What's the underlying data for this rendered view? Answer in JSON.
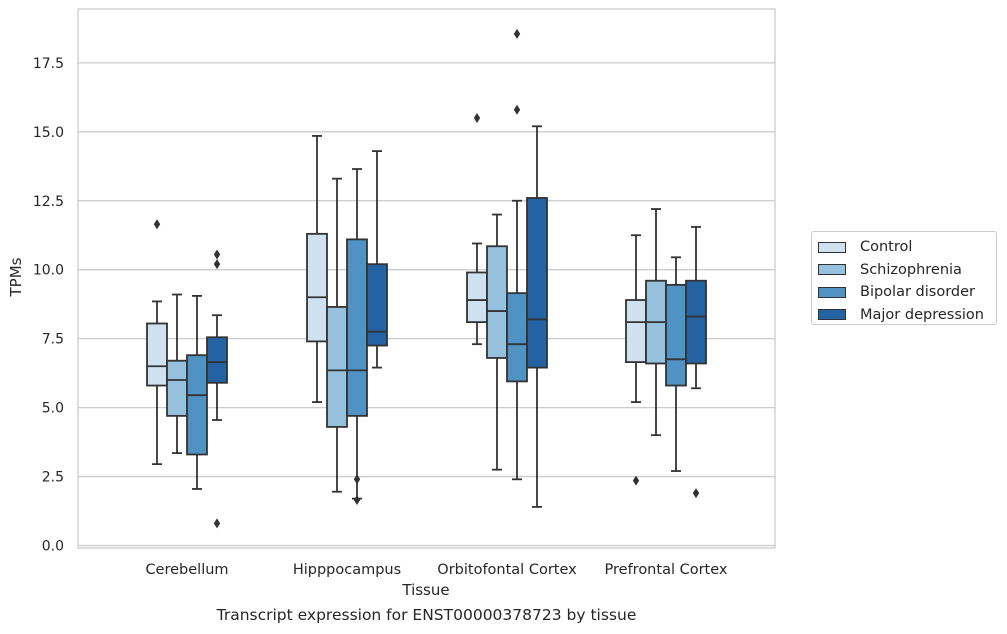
{
  "caption": "Transcript expression for ENST00000378723 by tissue",
  "colors": {
    "Control": "#cfe0f0",
    "Schizophrenia": "#96c1dd",
    "Bipolar disorder": "#4e93c3",
    "Major depression": "#2362a3",
    "grid": "#cccccc",
    "line": "#333333"
  },
  "legend": [
    "Control",
    "Schizophrenia",
    "Bipolar disorder",
    "Major depression"
  ],
  "chart_data": {
    "type": "box",
    "xlabel": "Tissue",
    "ylabel": "TPMs",
    "ylim": [
      0,
      19.4
    ],
    "yticks": [
      "0.0",
      "2.5",
      "5.0",
      "7.5",
      "10.0",
      "12.5",
      "15.0",
      "17.5"
    ],
    "grid": "horizontal",
    "legend_position": "right",
    "categories": [
      "Cerebellum",
      "Hipppocampus",
      "Orbitofontal Cortex",
      "Prefrontal Cortex"
    ],
    "series": [
      {
        "name": "Control",
        "boxes": [
          {
            "whislo": 2.95,
            "q1": 5.8,
            "med": 6.5,
            "q3": 8.05,
            "whishi": 8.85,
            "fliers": [
              11.65
            ]
          },
          {
            "whislo": 5.2,
            "q1": 7.4,
            "med": 9.0,
            "q3": 11.3,
            "whishi": 14.85,
            "fliers": []
          },
          {
            "whislo": 7.3,
            "q1": 8.1,
            "med": 8.9,
            "q3": 9.9,
            "whishi": 10.95,
            "fliers": [
              15.5
            ]
          },
          {
            "whislo": 5.2,
            "q1": 6.65,
            "med": 8.1,
            "q3": 8.9,
            "whishi": 11.25,
            "fliers": [
              2.35
            ]
          }
        ]
      },
      {
        "name": "Schizophrenia",
        "boxes": [
          {
            "whislo": 3.35,
            "q1": 4.7,
            "med": 6.0,
            "q3": 6.7,
            "whishi": 9.1,
            "fliers": []
          },
          {
            "whislo": 1.95,
            "q1": 4.3,
            "med": 6.35,
            "q3": 8.65,
            "whishi": 13.3,
            "fliers": []
          },
          {
            "whislo": 2.75,
            "q1": 6.8,
            "med": 8.5,
            "q3": 10.85,
            "whishi": 12.0,
            "fliers": []
          },
          {
            "whislo": 4.0,
            "q1": 6.6,
            "med": 8.1,
            "q3": 9.6,
            "whishi": 12.2,
            "fliers": []
          }
        ]
      },
      {
        "name": "Bipolar disorder",
        "boxes": [
          {
            "whislo": 2.05,
            "q1": 3.3,
            "med": 5.45,
            "q3": 6.9,
            "whishi": 9.05,
            "fliers": []
          },
          {
            "whislo": 1.7,
            "q1": 4.7,
            "med": 6.35,
            "q3": 11.1,
            "whishi": 13.65,
            "fliers": [
              2.4,
              1.65
            ]
          },
          {
            "whislo": 2.4,
            "q1": 5.95,
            "med": 7.3,
            "q3": 9.15,
            "whishi": 12.5,
            "fliers": [
              18.55,
              15.8
            ]
          },
          {
            "whislo": 2.7,
            "q1": 5.8,
            "med": 6.75,
            "q3": 9.45,
            "whishi": 10.45,
            "fliers": []
          }
        ]
      },
      {
        "name": "Major depression",
        "boxes": [
          {
            "whislo": 4.55,
            "q1": 5.9,
            "med": 6.65,
            "q3": 7.55,
            "whishi": 8.35,
            "fliers": [
              10.55,
              10.2,
              0.8
            ]
          },
          {
            "whislo": 6.45,
            "q1": 7.25,
            "med": 7.75,
            "q3": 10.2,
            "whishi": 14.3,
            "fliers": []
          },
          {
            "whislo": 1.4,
            "q1": 6.45,
            "med": 8.2,
            "q3": 12.6,
            "whishi": 15.2,
            "fliers": []
          },
          {
            "whislo": 5.7,
            "q1": 6.6,
            "med": 8.3,
            "q3": 9.6,
            "whishi": 11.55,
            "fliers": [
              1.9
            ]
          }
        ]
      }
    ]
  }
}
